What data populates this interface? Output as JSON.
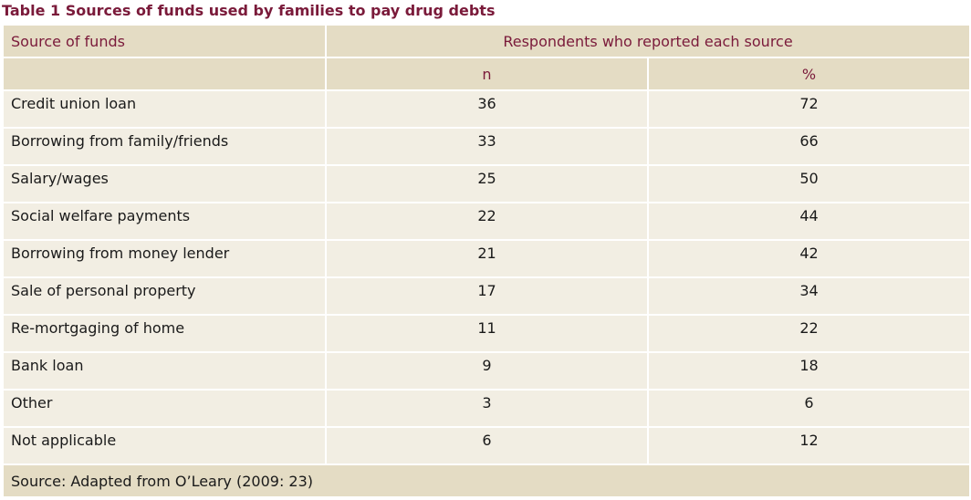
{
  "title": "Table 1  Sources of funds used by families to pay drug debts",
  "table": {
    "col_source": "Source of funds",
    "col_group": "Respondents who reported each source",
    "col_n": "n",
    "col_pct": "%",
    "rows": [
      {
        "source": "Credit union loan",
        "n": "36",
        "pct": "72"
      },
      {
        "source": "Borrowing from family/friends",
        "n": "33",
        "pct": "66"
      },
      {
        "source": "Salary/wages",
        "n": "25",
        "pct": "50"
      },
      {
        "source": "Social welfare payments",
        "n": "22",
        "pct": "44"
      },
      {
        "source": "Borrowing from money lender",
        "n": "21",
        "pct": "42"
      },
      {
        "source": "Sale of personal property",
        "n": "17",
        "pct": "34"
      },
      {
        "source": "Re-mortgaging of home",
        "n": "11",
        "pct": "22"
      },
      {
        "source": "Bank loan",
        "n": "9",
        "pct": "18"
      },
      {
        "source": "Other",
        "n": "3",
        "pct": "6"
      },
      {
        "source": "Not applicable",
        "n": "6",
        "pct": "12"
      }
    ],
    "footer": "Source: Adapted from O’Leary (2009: 23)"
  },
  "chart_data": {
    "type": "table",
    "title": "Table 1  Sources of funds used by families to pay drug debts",
    "columns": [
      "Source of funds",
      "n",
      "%"
    ],
    "categories": [
      "Credit union loan",
      "Borrowing from family/friends",
      "Salary/wages",
      "Social welfare payments",
      "Borrowing from money lender",
      "Sale of personal property",
      "Re-mortgaging of home",
      "Bank loan",
      "Other",
      "Not applicable"
    ],
    "series": [
      {
        "name": "n",
        "values": [
          36,
          33,
          25,
          22,
          21,
          17,
          11,
          9,
          3,
          6
        ]
      },
      {
        "name": "%",
        "values": [
          72,
          66,
          50,
          44,
          42,
          34,
          22,
          18,
          6,
          12
        ]
      }
    ]
  }
}
